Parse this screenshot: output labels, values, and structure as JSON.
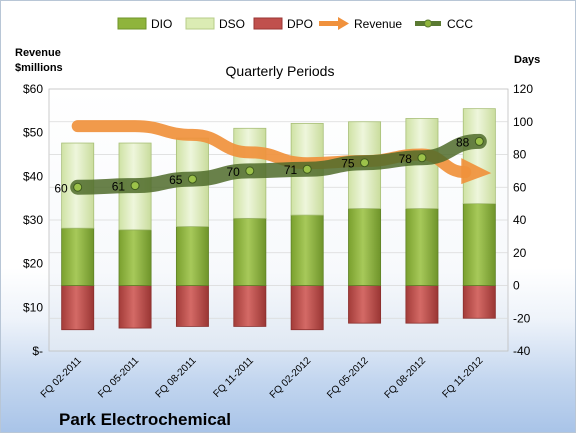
{
  "chart_data": {
    "type": "bar",
    "title": "Quarterly Periods",
    "company": "Park Electrochemical",
    "left_axis_title": [
      "Revenue",
      "$millions"
    ],
    "right_axis_title": "Days",
    "left_ticks": [
      "$-",
      "$10",
      "$20",
      "$30",
      "$40",
      "$50",
      "$60"
    ],
    "right_ticks": [
      "-40",
      "-20",
      "0",
      "20",
      "40",
      "60",
      "80",
      "100",
      "120"
    ],
    "left_ylim": [
      0,
      60
    ],
    "right_ylim": [
      -40,
      120
    ],
    "grid": true,
    "legend_position": "top",
    "categories": [
      "FQ 02-2011",
      "FQ 05-2011",
      "FQ 08-2011",
      "FQ 11-2011",
      "FQ 02-2012",
      "FQ 05-2012",
      "FQ 08-2012",
      "FQ 11-2012"
    ],
    "series": [
      {
        "name": "DIO",
        "type": "stacked-bar",
        "axis": "right",
        "color": "#8fb43c",
        "values": [
          35,
          34,
          36,
          41,
          43,
          47,
          47,
          50
        ]
      },
      {
        "name": "DSO",
        "type": "stacked-bar",
        "axis": "right",
        "color": "#dbecb4",
        "values": [
          52,
          53,
          54,
          55,
          56,
          53,
          55,
          58
        ]
      },
      {
        "name": "DPO",
        "type": "stacked-bar-negative",
        "axis": "right",
        "color": "#c0504d",
        "values": [
          27,
          26,
          25,
          25,
          27,
          23,
          23,
          20
        ]
      },
      {
        "name": "Revenue",
        "type": "arrow",
        "axis": "left",
        "color": "#f0913c",
        "values": [
          51.5,
          51.5,
          49.5,
          45.5,
          43,
          43.5,
          45,
          40.5
        ]
      },
      {
        "name": "CCC",
        "type": "line",
        "axis": "right",
        "color": "#5a7a32",
        "values": [
          60,
          61,
          65,
          70,
          71,
          75,
          78,
          88
        ],
        "labels": [
          "60",
          "61",
          "65",
          "70",
          "71",
          "75",
          "78",
          "88"
        ]
      }
    ]
  }
}
